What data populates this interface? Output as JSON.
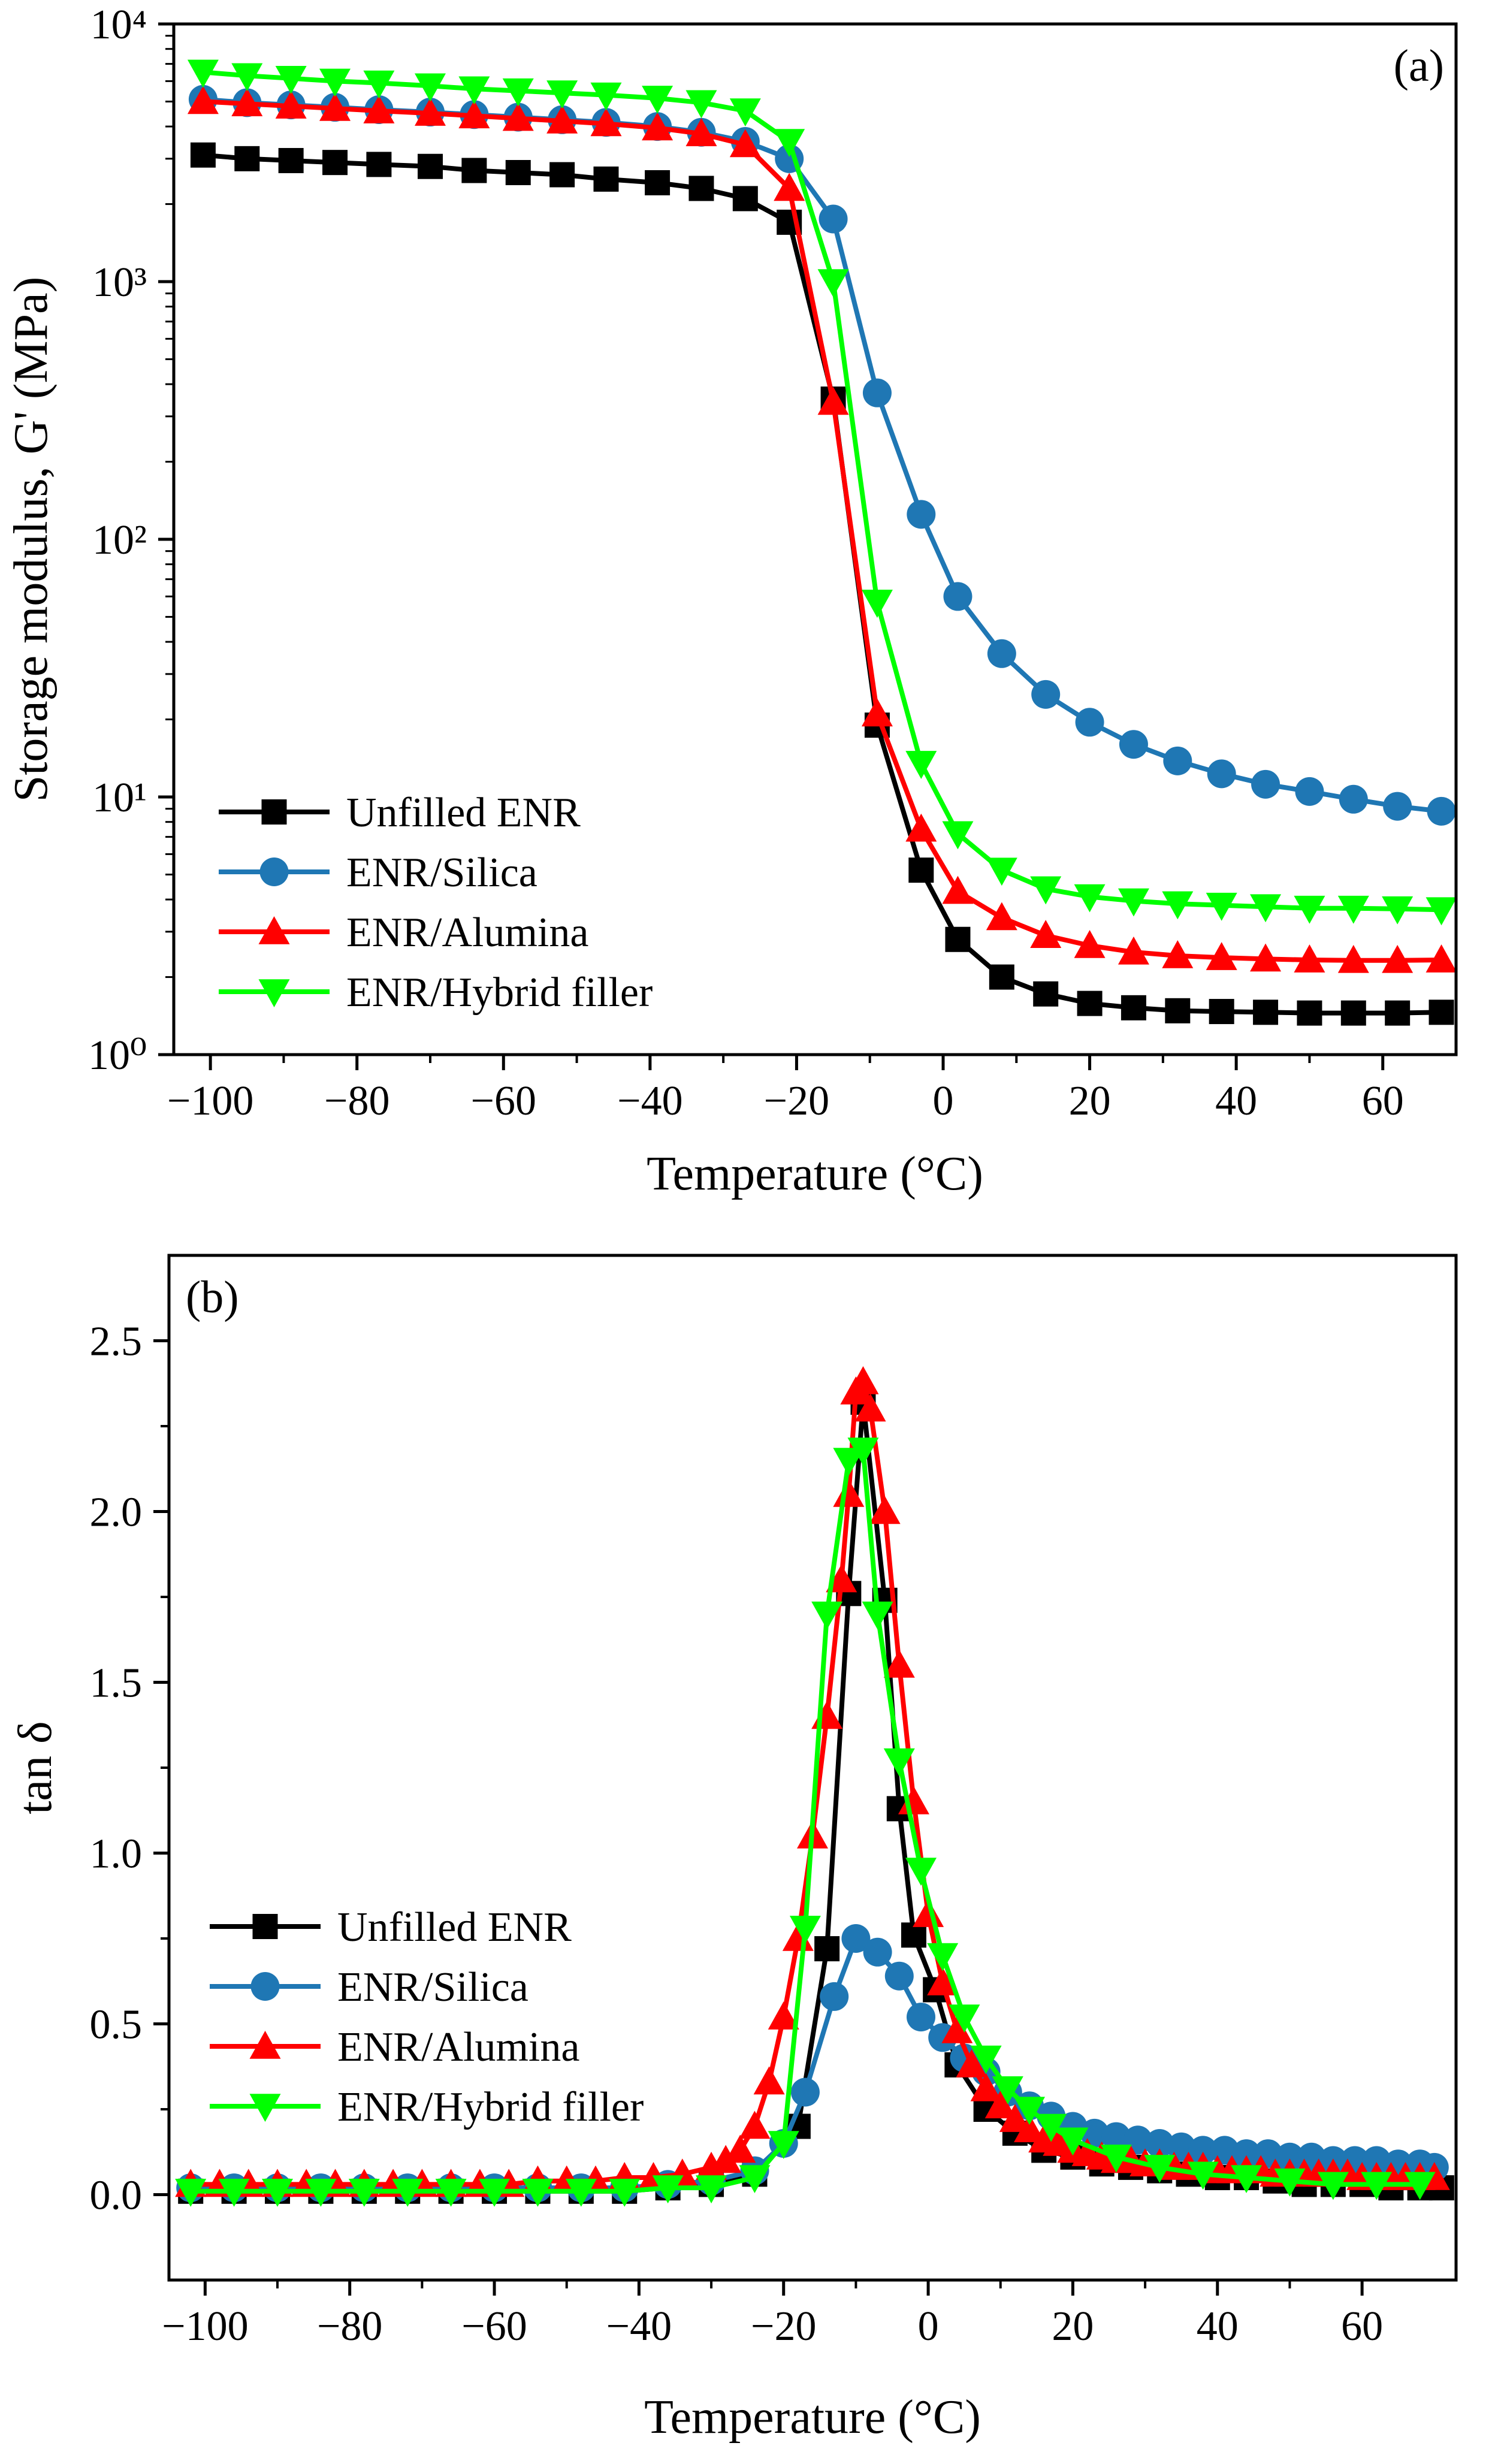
{
  "chart_data": [
    {
      "type": "line",
      "yscale": "log",
      "panel_label": "(a)",
      "title": "",
      "xlabel": "Temperature (°C)",
      "ylabel": "Storage modulus, G' (MPa)",
      "xlim": [
        -105,
        70
      ],
      "ylim": [
        1,
        10000
      ],
      "x_ticks": [
        -100,
        -80,
        -60,
        -40,
        -20,
        0,
        20,
        40,
        60
      ],
      "x_tick_labels": [
        "−100",
        "−80",
        "−60",
        "−40",
        "−20",
        "0",
        "20",
        "40",
        "60"
      ],
      "y_ticks": [
        1,
        10,
        100,
        1000,
        10000
      ],
      "y_tick_labels": [
        "10⁰",
        "10¹",
        "10²",
        "10³",
        "10⁴"
      ],
      "legend_position": "bottom-left",
      "series": [
        {
          "name": "Unfilled ENR",
          "color": "#000000",
          "marker": "square",
          "x": [
            -101,
            -95,
            -89,
            -83,
            -77,
            -70,
            -64,
            -58,
            -52,
            -46,
            -39,
            -33,
            -27,
            -21,
            -15,
            -9,
            -3,
            2,
            8,
            14,
            20,
            26,
            32,
            38,
            44,
            50,
            56,
            62,
            68
          ],
          "y": [
            3100,
            3000,
            2950,
            2900,
            2850,
            2800,
            2700,
            2650,
            2600,
            2500,
            2420,
            2300,
            2100,
            1700,
            350,
            19,
            5.2,
            2.8,
            2.0,
            1.72,
            1.58,
            1.52,
            1.48,
            1.47,
            1.46,
            1.45,
            1.45,
            1.45,
            1.46
          ]
        },
        {
          "name": "ENR/Silica",
          "color": "#1f77b4",
          "marker": "circle",
          "x": [
            -101,
            -95,
            -89,
            -83,
            -77,
            -70,
            -64,
            -58,
            -52,
            -46,
            -39,
            -33,
            -27,
            -21,
            -15,
            -9,
            -3,
            2,
            8,
            14,
            20,
            26,
            32,
            38,
            44,
            50,
            56,
            62,
            68
          ],
          "y": [
            5100,
            4950,
            4850,
            4750,
            4650,
            4550,
            4450,
            4350,
            4250,
            4150,
            4000,
            3800,
            3500,
            3000,
            1750,
            370,
            125,
            60,
            36,
            25,
            19.5,
            16,
            13.8,
            12.3,
            11.2,
            10.5,
            9.8,
            9.2,
            8.8
          ]
        },
        {
          "name": "ENR/Alumina",
          "color": "#ff0000",
          "marker": "triangle-up",
          "x": [
            -101,
            -95,
            -89,
            -83,
            -77,
            -70,
            -64,
            -58,
            -52,
            -46,
            -39,
            -33,
            -27,
            -21,
            -15,
            -9,
            -3,
            2,
            8,
            14,
            20,
            26,
            32,
            38,
            44,
            50,
            56,
            62,
            68
          ],
          "y": [
            5000,
            4900,
            4800,
            4700,
            4600,
            4500,
            4400,
            4300,
            4200,
            4100,
            3950,
            3750,
            3400,
            2300,
            340,
            21,
            7.5,
            4.3,
            3.4,
            2.9,
            2.65,
            2.5,
            2.42,
            2.38,
            2.35,
            2.33,
            2.32,
            2.32,
            2.33
          ]
        },
        {
          "name": "ENR/Hybrid filler",
          "color": "#00ff00",
          "marker": "triangle-down",
          "x": [
            -101,
            -95,
            -89,
            -83,
            -77,
            -70,
            -64,
            -58,
            -52,
            -46,
            -39,
            -33,
            -27,
            -21,
            -15,
            -9,
            -3,
            2,
            8,
            14,
            20,
            26,
            32,
            38,
            44,
            50,
            56,
            62,
            68
          ],
          "y": [
            6500,
            6300,
            6150,
            6000,
            5900,
            5750,
            5600,
            5500,
            5400,
            5300,
            5150,
            4950,
            4600,
            3500,
            1000,
            57,
            13.5,
            7.2,
            5.2,
            4.4,
            4.1,
            3.95,
            3.85,
            3.8,
            3.75,
            3.7,
            3.7,
            3.68,
            3.65
          ]
        }
      ]
    },
    {
      "type": "line",
      "yscale": "linear",
      "panel_label": "(b)",
      "title": "",
      "xlabel": "Temperature (°C)",
      "ylabel": "tan δ",
      "xlim": [
        -105,
        73
      ],
      "ylim": [
        -0.25,
        2.75
      ],
      "x_ticks": [
        -100,
        -80,
        -60,
        -40,
        -20,
        0,
        20,
        40,
        60
      ],
      "x_tick_labels": [
        "−100",
        "−80",
        "−60",
        "−40",
        "−20",
        "0",
        "20",
        "40",
        "60"
      ],
      "y_ticks": [
        0,
        0.5,
        1,
        1.5,
        2,
        2.5
      ],
      "y_tick_labels": [
        "0.0",
        "0.5",
        "1.0",
        "1.5",
        "2.0",
        "2.5"
      ],
      "legend_position": "middle-left",
      "series": [
        {
          "name": "Unfilled ENR",
          "color": "#000000",
          "marker": "square",
          "x": [
            -102,
            -96,
            -90,
            -84,
            -78,
            -72,
            -66,
            -60,
            -54,
            -48,
            -42,
            -36,
            -30,
            -24,
            -18,
            -14,
            -11,
            -9,
            -6,
            -4,
            -2,
            1,
            4,
            8,
            12,
            16,
            20,
            24,
            28,
            32,
            36,
            40,
            44,
            48,
            52,
            56,
            60,
            64,
            68,
            71
          ],
          "y": [
            0.01,
            0.01,
            0.01,
            0.01,
            0.01,
            0.01,
            0.01,
            0.01,
            0.01,
            0.01,
            0.01,
            0.02,
            0.03,
            0.06,
            0.2,
            0.72,
            1.76,
            2.32,
            1.74,
            1.13,
            0.76,
            0.6,
            0.38,
            0.25,
            0.18,
            0.13,
            0.11,
            0.09,
            0.08,
            0.07,
            0.06,
            0.05,
            0.05,
            0.04,
            0.03,
            0.03,
            0.03,
            0.02,
            0.02,
            0.02
          ]
        },
        {
          "name": "ENR/Silica",
          "color": "#1f77b4",
          "marker": "circle",
          "x": [
            -102,
            -96,
            -90,
            -84,
            -78,
            -72,
            -66,
            -60,
            -54,
            -48,
            -42,
            -36,
            -30,
            -24,
            -20,
            -17,
            -13,
            -10,
            -7,
            -4,
            -1,
            2,
            5,
            8,
            11,
            14,
            17,
            20,
            23,
            26,
            29,
            32,
            35,
            38,
            41,
            44,
            47,
            50,
            53,
            56,
            59,
            62,
            65,
            68,
            70
          ],
          "y": [
            0.02,
            0.02,
            0.02,
            0.02,
            0.02,
            0.02,
            0.02,
            0.02,
            0.02,
            0.02,
            0.02,
            0.03,
            0.04,
            0.07,
            0.15,
            0.3,
            0.58,
            0.75,
            0.71,
            0.64,
            0.52,
            0.46,
            0.4,
            0.36,
            0.3,
            0.26,
            0.23,
            0.2,
            0.18,
            0.17,
            0.16,
            0.15,
            0.14,
            0.13,
            0.13,
            0.12,
            0.12,
            0.11,
            0.11,
            0.1,
            0.1,
            0.1,
            0.09,
            0.09,
            0.08
          ]
        },
        {
          "name": "ENR/Alumina",
          "color": "#ff0000",
          "marker": "triangle-up",
          "x": [
            -102,
            -98,
            -94,
            -90,
            -86,
            -82,
            -78,
            -74,
            -70,
            -66,
            -62,
            -58,
            -54,
            -50,
            -46,
            -42,
            -38,
            -34,
            -30,
            -28,
            -26,
            -24,
            -22,
            -20,
            -18,
            -16,
            -14,
            -12,
            -11,
            -10,
            -9,
            -8,
            -6,
            -4,
            -2,
            0,
            2,
            4,
            6,
            8,
            10,
            12,
            14,
            16,
            18,
            20,
            22,
            24,
            26,
            28,
            30,
            32,
            34,
            36,
            38,
            40,
            42,
            44,
            46,
            48,
            50,
            52,
            54,
            56,
            58,
            60,
            62,
            64,
            66,
            68,
            70
          ],
          "y": [
            0.03,
            0.03,
            0.03,
            0.03,
            0.03,
            0.03,
            0.03,
            0.03,
            0.03,
            0.03,
            0.03,
            0.03,
            0.04,
            0.04,
            0.04,
            0.05,
            0.05,
            0.06,
            0.08,
            0.1,
            0.13,
            0.2,
            0.33,
            0.52,
            0.75,
            1.05,
            1.4,
            1.8,
            2.05,
            2.35,
            2.38,
            2.3,
            2.0,
            1.55,
            1.15,
            0.82,
            0.62,
            0.48,
            0.38,
            0.31,
            0.26,
            0.22,
            0.19,
            0.16,
            0.15,
            0.13,
            0.12,
            0.11,
            0.1,
            0.1,
            0.09,
            0.09,
            0.08,
            0.08,
            0.08,
            0.07,
            0.07,
            0.07,
            0.07,
            0.06,
            0.06,
            0.06,
            0.06,
            0.06,
            0.06,
            0.05,
            0.05,
            0.05,
            0.05,
            0.05,
            0.05
          ]
        },
        {
          "name": "ENR/Hybrid filler",
          "color": "#00ff00",
          "marker": "triangle-down",
          "x": [
            -102,
            -96,
            -90,
            -84,
            -78,
            -72,
            -66,
            -60,
            -54,
            -48,
            -42,
            -36,
            -30,
            -24,
            -20,
            -17,
            -14,
            -11,
            -9,
            -7,
            -4,
            -1,
            2,
            5,
            8,
            11,
            14,
            17,
            20,
            26,
            32,
            38,
            44,
            50,
            56,
            62,
            68
          ],
          "y": [
            0.01,
            0.01,
            0.01,
            0.01,
            0.01,
            0.01,
            0.01,
            0.01,
            0.01,
            0.01,
            0.01,
            0.02,
            0.02,
            0.05,
            0.15,
            0.78,
            1.7,
            2.15,
            2.18,
            1.7,
            1.27,
            0.95,
            0.7,
            0.52,
            0.4,
            0.31,
            0.25,
            0.2,
            0.16,
            0.11,
            0.08,
            0.06,
            0.05,
            0.04,
            0.03,
            0.03,
            0.03
          ]
        }
      ]
    }
  ]
}
